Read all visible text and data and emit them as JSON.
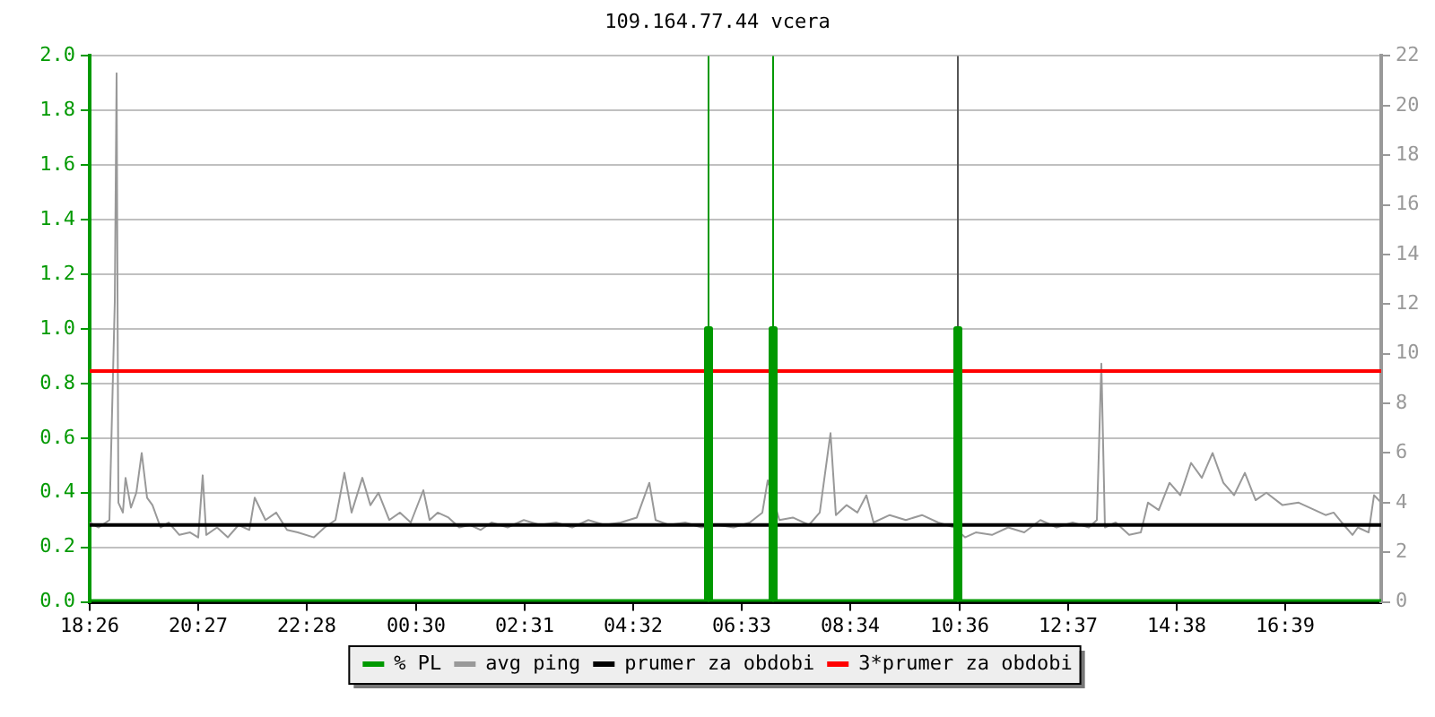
{
  "chart_data": {
    "type": "line",
    "title": "109.164.77.44 vcera",
    "xlim": [
      "--01-01T18:26",
      "--01-02T18:26"
    ],
    "xticks": [
      {
        "value": "--01-01T18:26",
        "label": "18:26"
      },
      {
        "value": "--01-01T20:27",
        "label": "20:27"
      },
      {
        "value": "--01-01T22:28",
        "label": "22:28"
      },
      {
        "value": "--01-02T00:30",
        "label": "00:30"
      },
      {
        "value": "--01-02T02:31",
        "label": "02:31"
      },
      {
        "value": "--01-02T04:32",
        "label": "04:32"
      },
      {
        "value": "--01-02T06:33",
        "label": "06:33"
      },
      {
        "value": "--01-02T08:34",
        "label": "08:34"
      },
      {
        "value": "--01-02T10:36",
        "label": "10:36"
      },
      {
        "value": "--01-02T12:37",
        "label": "12:37"
      },
      {
        "value": "--01-02T14:38",
        "label": "14:38"
      },
      {
        "value": "--01-02T16:39",
        "label": "16:39"
      }
    ],
    "ylim": [
      0,
      2
    ],
    "yticks": [
      {
        "value": 0,
        "label": "0.0"
      },
      {
        "value": 0.2,
        "label": "0.2"
      },
      {
        "value": 0.4,
        "label": "0.4"
      },
      {
        "value": 0.6,
        "label": "0.6"
      },
      {
        "value": 0.8,
        "label": "0.8"
      },
      {
        "value": 1,
        "label": "1.0"
      },
      {
        "value": 1.2,
        "label": "1.2"
      },
      {
        "value": 1.4,
        "label": "1.4"
      },
      {
        "value": 1.6,
        "label": "1.6"
      },
      {
        "value": 1.8,
        "label": "1.8"
      },
      {
        "value": 2,
        "label": "2.0"
      }
    ],
    "y2lim": [
      0,
      22
    ],
    "y2ticks": [
      0,
      2,
      4,
      6,
      8,
      10,
      12,
      14,
      16,
      18,
      20,
      22
    ],
    "grid": "y",
    "legend": "bottom",
    "marker": "none",
    "line_style": "solid",
    "ref_lines": [
      {
        "axis": "x",
        "value": "--01-02T05:56",
        "color": "#009900"
      },
      {
        "axis": "x",
        "value": "--01-02T07:08",
        "color": "#009900"
      },
      {
        "axis": "x",
        "value": "--01-02T10:34",
        "color": "#555555"
      }
    ],
    "series": [
      {
        "name": "% PL",
        "type": "step",
        "color": "#009900",
        "x": [
          "--01-01T18:26",
          "--01-02T05:54",
          "--01-02T05:58",
          "--01-02T07:06",
          "--01-02T07:10",
          "--01-02T10:32",
          "--01-02T10:36",
          "--01-02T18:26"
        ],
        "values": [
          0,
          1,
          0,
          1,
          0,
          1,
          0,
          0
        ]
      },
      {
        "name": "avg ping",
        "color": "#999999",
        "axis": "y2",
        "x": [
          "--01-01T18:26",
          "--01-01T18:36",
          "--01-01T18:48",
          "--01-01T18:54",
          "--01-01T18:56",
          "--01-01T18:58",
          "--01-01T19:03",
          "--01-01T19:06",
          "--01-01T19:12",
          "--01-01T19:18",
          "--01-01T19:24",
          "--01-01T19:30",
          "--01-01T19:36",
          "--01-01T19:45",
          "--01-01T19:54",
          "--01-01T20:06",
          "--01-01T20:18",
          "--01-01T20:27",
          "--01-01T20:32",
          "--01-01T20:36",
          "--01-01T20:48",
          "--01-01T21:00",
          "--01-01T21:12",
          "--01-01T21:24",
          "--01-01T21:30",
          "--01-01T21:42",
          "--01-01T21:54",
          "--01-01T22:06",
          "--01-01T22:18",
          "--01-01T22:36",
          "--01-01T22:48",
          "--01-01T23:00",
          "--01-01T23:10",
          "--01-01T23:18",
          "--01-01T23:30",
          "--01-01T23:39",
          "--01-01T23:48",
          "--01-02T00:00",
          "--01-02T00:12",
          "--01-02T00:24",
          "--01-02T00:38",
          "--01-02T00:45",
          "--01-02T00:54",
          "--01-02T01:06",
          "--01-02T01:18",
          "--01-02T01:30",
          "--01-02T01:42",
          "--01-02T01:54",
          "--01-02T02:12",
          "--01-02T02:30",
          "--01-02T02:48",
          "--01-02T03:06",
          "--01-02T03:24",
          "--01-02T03:42",
          "--01-02T04:00",
          "--01-02T04:18",
          "--01-02T04:36",
          "--01-02T04:50",
          "--01-02T04:57",
          "--01-02T05:12",
          "--01-02T05:30",
          "--01-02T05:48",
          "--01-02T06:06",
          "--01-02T06:24",
          "--01-02T06:42",
          "--01-02T06:56",
          "--01-02T07:02",
          "--01-02T07:15",
          "--01-02T07:30",
          "--01-02T07:48",
          "--01-02T08:00",
          "--01-02T08:12",
          "--01-02T08:18",
          "--01-02T08:30",
          "--01-02T08:42",
          "--01-02T08:52",
          "--01-02T09:00",
          "--01-02T09:18",
          "--01-02T09:36",
          "--01-02T09:54",
          "--01-02T10:12",
          "--01-02T10:30",
          "--01-02T10:42",
          "--01-02T10:54",
          "--01-02T11:12",
          "--01-02T11:30",
          "--01-02T11:48",
          "--01-02T12:06",
          "--01-02T12:24",
          "--01-02T12:42",
          "--01-02T13:00",
          "--01-02T13:09",
          "--01-02T13:14",
          "--01-02T13:18",
          "--01-02T13:30",
          "--01-02T13:45",
          "--01-02T13:58",
          "--01-02T14:06",
          "--01-02T14:18",
          "--01-02T14:30",
          "--01-02T14:42",
          "--01-02T14:54",
          "--01-02T15:06",
          "--01-02T15:18",
          "--01-02T15:30",
          "--01-02T15:42",
          "--01-02T15:54",
          "--01-02T16:06",
          "--01-02T16:18",
          "--01-02T16:36",
          "--01-02T16:54",
          "--01-02T17:12",
          "--01-02T17:24",
          "--01-02T17:33",
          "--01-02T17:42",
          "--01-02T17:54",
          "--01-02T18:00",
          "--01-02T18:12",
          "--01-02T18:18",
          "--01-02T18:26"
        ],
        "values": [
          3.2,
          3.0,
          3.3,
          12.1,
          21.3,
          4.0,
          3.6,
          5.0,
          3.8,
          4.4,
          6.0,
          4.2,
          3.9,
          3.0,
          3.2,
          2.7,
          2.8,
          2.6,
          5.1,
          2.7,
          3.0,
          2.6,
          3.1,
          2.9,
          4.2,
          3.3,
          3.6,
          2.9,
          2.8,
          2.6,
          3.0,
          3.3,
          5.2,
          3.6,
          5.0,
          3.9,
          4.4,
          3.3,
          3.6,
          3.2,
          4.5,
          3.3,
          3.6,
          3.4,
          3.0,
          3.1,
          2.9,
          3.2,
          3.0,
          3.3,
          3.1,
          3.2,
          3.0,
          3.3,
          3.1,
          3.2,
          3.4,
          4.8,
          3.3,
          3.1,
          3.2,
          3.0,
          3.1,
          3.0,
          3.2,
          3.6,
          4.9,
          3.3,
          3.4,
          3.1,
          3.6,
          6.8,
          3.5,
          3.9,
          3.6,
          4.3,
          3.2,
          3.5,
          3.3,
          3.5,
          3.2,
          3.0,
          2.6,
          2.8,
          2.7,
          3.0,
          2.8,
          3.3,
          3.0,
          3.2,
          3.0,
          3.3,
          9.6,
          3.0,
          3.2,
          2.7,
          2.8,
          4.0,
          3.7,
          4.8,
          4.3,
          5.6,
          5.0,
          6.0,
          4.8,
          4.3,
          5.2,
          4.1,
          4.4,
          3.9,
          4.0,
          3.7,
          3.5,
          3.6,
          3.2,
          2.7,
          3.0,
          2.8,
          4.3,
          4.0
        ]
      },
      {
        "name": "prumer za obdobi",
        "color": "#000000",
        "axis": "y2",
        "x": [
          "--01-01T18:26",
          "--01-02T18:26"
        ],
        "values": [
          3.1,
          3.1
        ]
      },
      {
        "name": "3*prumer za obdobi",
        "color": "#ff0000",
        "axis": "y2",
        "x": [
          "--01-01T18:26",
          "--01-02T18:26"
        ],
        "values": [
          9.3,
          9.3
        ]
      }
    ]
  }
}
